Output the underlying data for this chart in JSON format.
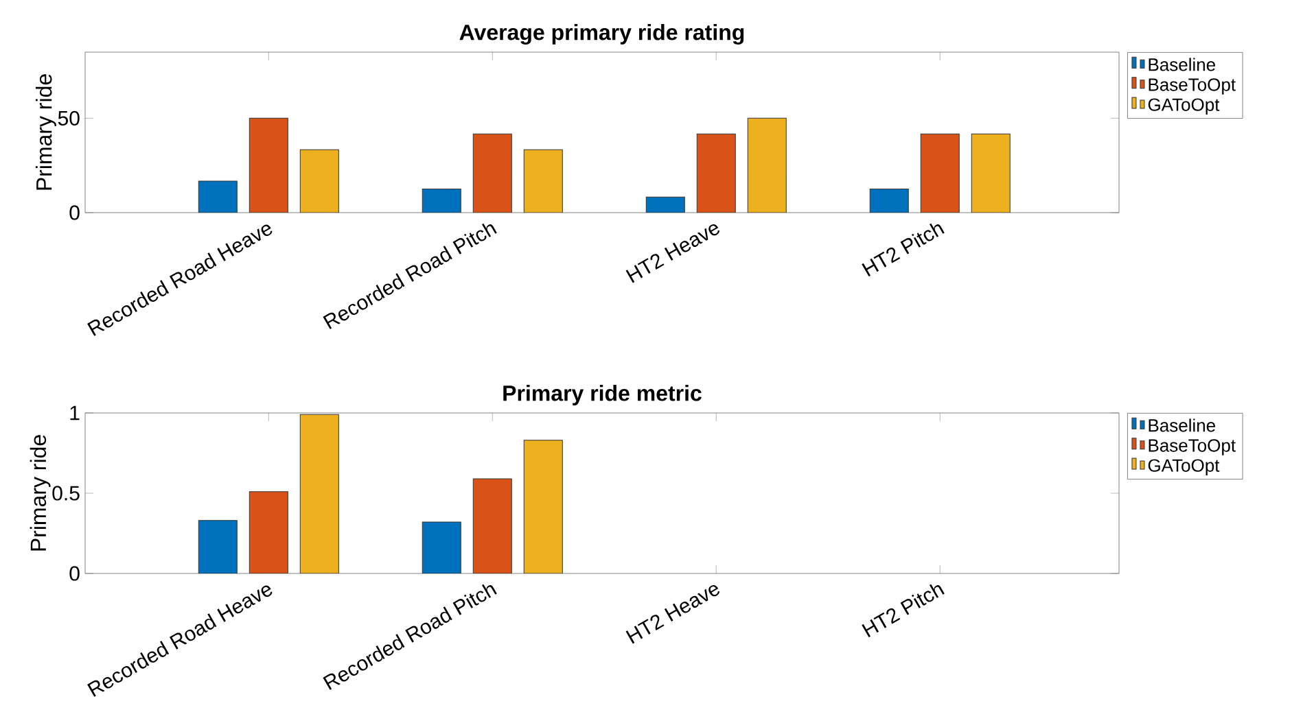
{
  "chart_data": [
    {
      "type": "bar",
      "title": "Average primary ride rating",
      "ylabel": "Primary ride",
      "categories": [
        "Recorded Road Heave",
        "Recorded Road Pitch",
        "HT2 Heave",
        "HT2 Pitch"
      ],
      "ylim": [
        0,
        85
      ],
      "yticks": [
        0,
        50
      ],
      "legend": "right",
      "series": [
        {
          "name": "Baseline",
          "color": "#0072bd",
          "values": [
            16.7,
            12.5,
            8.3,
            12.5
          ]
        },
        {
          "name": "BaseToOpt",
          "color": "#d95319",
          "values": [
            50,
            41.7,
            41.7,
            41.7
          ]
        },
        {
          "name": "GAToOpt",
          "color": "#edb120",
          "values": [
            33.3,
            33.3,
            50,
            41.7
          ]
        }
      ]
    },
    {
      "type": "bar",
      "title": "Primary ride metric",
      "ylabel": "Primary ride",
      "categories": [
        "Recorded Road Heave",
        "Recorded Road Pitch",
        "HT2 Heave",
        "HT2 Pitch"
      ],
      "ylim": [
        0,
        1
      ],
      "yticks": [
        0,
        0.5,
        1
      ],
      "legend": "right",
      "series": [
        {
          "name": "Baseline",
          "color": "#0072bd",
          "values": [
            0.33,
            0.32,
            null,
            null
          ]
        },
        {
          "name": "BaseToOpt",
          "color": "#d95319",
          "values": [
            0.51,
            0.59,
            null,
            null
          ]
        },
        {
          "name": "GAToOpt",
          "color": "#edb120",
          "values": [
            0.99,
            0.83,
            null,
            null
          ]
        }
      ]
    }
  ]
}
